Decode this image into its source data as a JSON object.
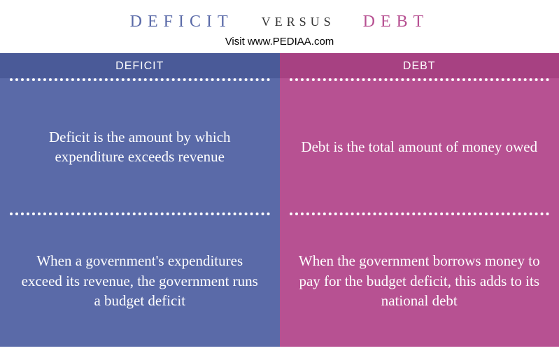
{
  "header": {
    "left_term": "DEFICIT",
    "versus": "VERSUS",
    "right_term": "DEBT",
    "subtitle": "Visit www.PEDIAA.com",
    "left_color": "#5a6aa8",
    "versus_color": "#333333",
    "right_color": "#b75192",
    "title_fontsize": 24,
    "versus_fontsize": 18,
    "subtitle_fontsize": 15,
    "subtitle_color": "#000000"
  },
  "left_column": {
    "bg_color": "#5a6aa8",
    "header_bg_color": "#4a5a98",
    "text_color": "#ffffff",
    "divider_color": "#ffffff",
    "header_label": "DEFICIT",
    "header_fontsize": 16,
    "cell_fontsize": 21,
    "cells": [
      "Deficit is the amount by which expenditure exceeds revenue",
      "When a government's expenditures exceed its revenue, the government runs a budget deficit"
    ]
  },
  "right_column": {
    "bg_color": "#b75192",
    "header_bg_color": "#a74182",
    "text_color": "#ffffff",
    "divider_color": "#ffffff",
    "header_label": "DEBT",
    "header_fontsize": 16,
    "cell_fontsize": 21,
    "cells": [
      "Debt is the total amount of money owed",
      "When the government borrows money to pay for the budget deficit, this adds to its national debt"
    ]
  }
}
